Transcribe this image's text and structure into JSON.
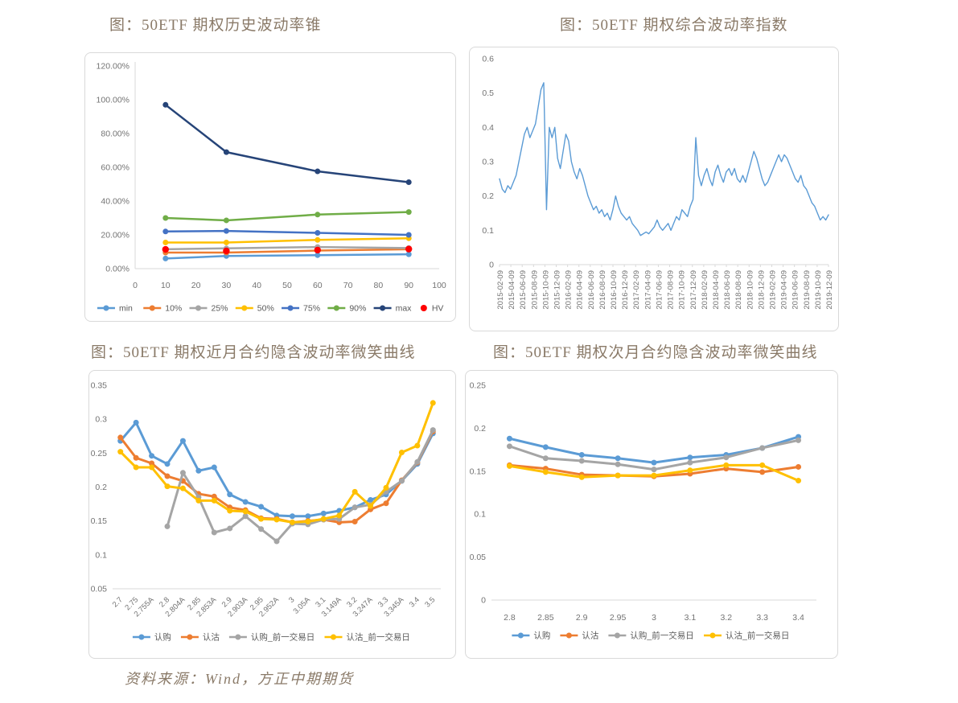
{
  "page": {
    "background": "#ffffff",
    "caption_color": "#8a7a68",
    "axis_label_color": "#737373",
    "legend_label_color": "#595959",
    "axis_line_color": "#d9d9d9"
  },
  "figures": [
    {
      "caption": "图：50ETF 期权历史波动率锥"
    },
    {
      "caption": "图：50ETF 期权综合波动率指数"
    },
    {
      "caption": "图：50ETF 期权近月合约隐含波动率微笑曲线"
    },
    {
      "caption": "图：50ETF 期权次月合约隐含波动率微笑曲线"
    }
  ],
  "footer": {
    "text": "资料来源：Wind，方正中期期货"
  },
  "chart_data": [
    {
      "type": "line",
      "title": "50ETF 期权历史波动率锥",
      "xlabel": "",
      "ylabel": "",
      "xlim": [
        0,
        100
      ],
      "x": [
        10,
        30,
        60,
        90
      ],
      "x_tick_labels": [
        "0",
        "10",
        "20",
        "30",
        "40",
        "50",
        "60",
        "70",
        "80",
        "90",
        "100"
      ],
      "ylim": [
        0,
        1.2
      ],
      "y_step": 0.2,
      "y_tick_labels": [
        "0.00%",
        "20.00%",
        "40.00%",
        "60.00%",
        "80.00%",
        "100.00%",
        "120.00%"
      ],
      "legend_position": "bottom",
      "series": [
        {
          "name": "min",
          "color": "#5B9BD5",
          "values": [
            0.06,
            0.075,
            0.08,
            0.085
          ]
        },
        {
          "name": "10%",
          "color": "#ED7D31",
          "values": [
            0.095,
            0.095,
            0.107,
            0.115
          ]
        },
        {
          "name": "25%",
          "color": "#A5A5A5",
          "values": [
            0.115,
            0.12,
            0.128,
            0.122
          ]
        },
        {
          "name": "50%",
          "color": "#FFC000",
          "values": [
            0.155,
            0.155,
            0.17,
            0.18
          ]
        },
        {
          "name": "75%",
          "color": "#4472C4",
          "values": [
            0.22,
            0.223,
            0.212,
            0.2
          ]
        },
        {
          "name": "90%",
          "color": "#70AD47",
          "values": [
            0.3,
            0.286,
            0.32,
            0.335
          ]
        },
        {
          "name": "max",
          "color": "#264478",
          "values": [
            0.97,
            0.69,
            0.576,
            0.512
          ]
        },
        {
          "name": "HV",
          "color": "#FF0000",
          "style": "scatter",
          "values": [
            0.114,
            0.105,
            0.11,
            0.116
          ]
        }
      ]
    },
    {
      "type": "line",
      "title": "50ETF 期权综合波动率指数",
      "xlabel": "",
      "ylabel": "",
      "ylim": [
        0,
        0.6
      ],
      "y_step": 0.1,
      "y_tick_labels": [
        "0",
        "0.1",
        "0.2",
        "0.3",
        "0.4",
        "0.5",
        "0.6"
      ],
      "x_tick_labels": [
        "2015-02-09",
        "2015-04-09",
        "2015-06-09",
        "2015-08-09",
        "2015-10-09",
        "2015-12-09",
        "2016-02-09",
        "2016-04-09",
        "2016-06-09",
        "2016-08-09",
        "2016-10-09",
        "2016-12-09",
        "2017-02-09",
        "2017-04-09",
        "2017-06-09",
        "2017-08-09",
        "2017-10-09",
        "2017-12-09",
        "2018-02-09",
        "2018-04-09",
        "2018-06-09",
        "2018-08-09",
        "2018-10-09",
        "2018-12-09",
        "2019-02-09",
        "2019-04-09",
        "2019-06-09",
        "2019-08-09",
        "2019-10-09",
        "2019-12-09"
      ],
      "series": [
        {
          "color": "#5B9BD5",
          "markers": false,
          "values": [
            0.25,
            0.22,
            0.21,
            0.23,
            0.22,
            0.24,
            0.26,
            0.3,
            0.34,
            0.38,
            0.4,
            0.37,
            0.39,
            0.41,
            0.46,
            0.51,
            0.53,
            0.16,
            0.4,
            0.37,
            0.4,
            0.31,
            0.28,
            0.33,
            0.38,
            0.36,
            0.3,
            0.27,
            0.25,
            0.28,
            0.26,
            0.23,
            0.2,
            0.18,
            0.16,
            0.17,
            0.15,
            0.16,
            0.14,
            0.15,
            0.13,
            0.16,
            0.2,
            0.17,
            0.15,
            0.14,
            0.13,
            0.14,
            0.12,
            0.11,
            0.1,
            0.085,
            0.09,
            0.095,
            0.09,
            0.1,
            0.11,
            0.13,
            0.11,
            0.1,
            0.11,
            0.12,
            0.1,
            0.12,
            0.14,
            0.13,
            0.16,
            0.15,
            0.14,
            0.17,
            0.19,
            0.37,
            0.26,
            0.23,
            0.26,
            0.28,
            0.25,
            0.23,
            0.27,
            0.29,
            0.26,
            0.24,
            0.27,
            0.28,
            0.26,
            0.28,
            0.25,
            0.24,
            0.26,
            0.24,
            0.27,
            0.3,
            0.33,
            0.31,
            0.28,
            0.25,
            0.23,
            0.24,
            0.26,
            0.28,
            0.3,
            0.32,
            0.3,
            0.32,
            0.31,
            0.29,
            0.27,
            0.25,
            0.24,
            0.26,
            0.23,
            0.22,
            0.2,
            0.18,
            0.17,
            0.15,
            0.13,
            0.14,
            0.13,
            0.145
          ]
        }
      ]
    },
    {
      "type": "line",
      "title": "50ETF 期权近月合约隐含波动率微笑曲线",
      "xlabel": "",
      "ylabel": "",
      "categories": [
        "2.7",
        "2.75",
        "2.755A",
        "2.8",
        "2.804A",
        "2.85",
        "2.853A",
        "2.9",
        "2.903A",
        "2.95",
        "2.952A",
        "3",
        "3.05A",
        "3.1",
        "3.149A",
        "3.2",
        "3.247A",
        "3.3",
        "3.345A",
        "3.4",
        "3.5"
      ],
      "ylim": [
        0.05,
        0.35
      ],
      "y_step": 0.05,
      "y_tick_labels": [
        "0.05",
        "0.1",
        "0.15",
        "0.2",
        "0.25",
        "0.3",
        "0.35"
      ],
      "legend_position": "bottom",
      "series": [
        {
          "name": "认购",
          "color": "#5B9BD5",
          "values": [
            0.268,
            0.295,
            0.246,
            0.234,
            0.268,
            0.224,
            0.229,
            0.189,
            0.178,
            0.171,
            0.158,
            0.157,
            0.157,
            0.161,
            0.165,
            0.17,
            0.181,
            0.189,
            0.209,
            0.234,
            0.279
          ]
        },
        {
          "name": "认沽",
          "color": "#ED7D31",
          "values": [
            0.273,
            0.243,
            0.235,
            0.216,
            0.209,
            0.19,
            0.186,
            0.17,
            0.166,
            0.154,
            0.153,
            0.148,
            0.15,
            0.152,
            0.148,
            0.149,
            0.167,
            0.176,
            0.21,
            0.236,
            0.282
          ]
        },
        {
          "name": "认购_前一交易日",
          "color": "#A5A5A5",
          "values": [
            null,
            null,
            null,
            0.142,
            0.221,
            0.185,
            0.133,
            0.139,
            0.157,
            0.138,
            0.12,
            0.146,
            0.145,
            0.152,
            0.153,
            0.17,
            0.174,
            0.193,
            0.209,
            0.237,
            0.284
          ]
        },
        {
          "name": "认沽_前一交易日",
          "color": "#FFC000",
          "values": [
            0.252,
            0.229,
            0.229,
            0.201,
            0.198,
            0.18,
            0.18,
            0.165,
            0.164,
            0.153,
            0.152,
            0.148,
            0.149,
            0.153,
            0.158,
            0.193,
            0.172,
            0.199,
            0.251,
            0.261,
            0.324
          ]
        }
      ]
    },
    {
      "type": "line",
      "title": "50ETF 期权次月合约隐含波动率微笑曲线",
      "xlabel": "",
      "ylabel": "",
      "categories": [
        "2.8",
        "2.85",
        "2.9",
        "2.95",
        "3",
        "3.1",
        "3.2",
        "3.3",
        "3.4"
      ],
      "ylim": [
        0,
        0.25
      ],
      "y_step": 0.05,
      "y_tick_labels": [
        "0",
        "0.05",
        "0.1",
        "0.15",
        "0.2",
        "0.25"
      ],
      "legend_position": "bottom",
      "series": [
        {
          "name": "认购",
          "color": "#5B9BD5",
          "values": [
            0.188,
            0.178,
            0.169,
            0.165,
            0.16,
            0.166,
            0.169,
            0.177,
            0.19
          ]
        },
        {
          "name": "认沽",
          "color": "#ED7D31",
          "values": [
            0.157,
            0.153,
            0.146,
            0.145,
            0.144,
            0.147,
            0.153,
            0.149,
            0.155
          ]
        },
        {
          "name": "认购_前一交易日",
          "color": "#A5A5A5",
          "values": [
            0.179,
            0.165,
            0.162,
            0.158,
            0.152,
            0.16,
            0.166,
            0.177,
            0.186
          ]
        },
        {
          "name": "认沽_前一交易日",
          "color": "#FFC000",
          "values": [
            0.156,
            0.149,
            0.143,
            0.145,
            0.145,
            0.151,
            0.157,
            0.157,
            0.139
          ]
        }
      ]
    }
  ]
}
